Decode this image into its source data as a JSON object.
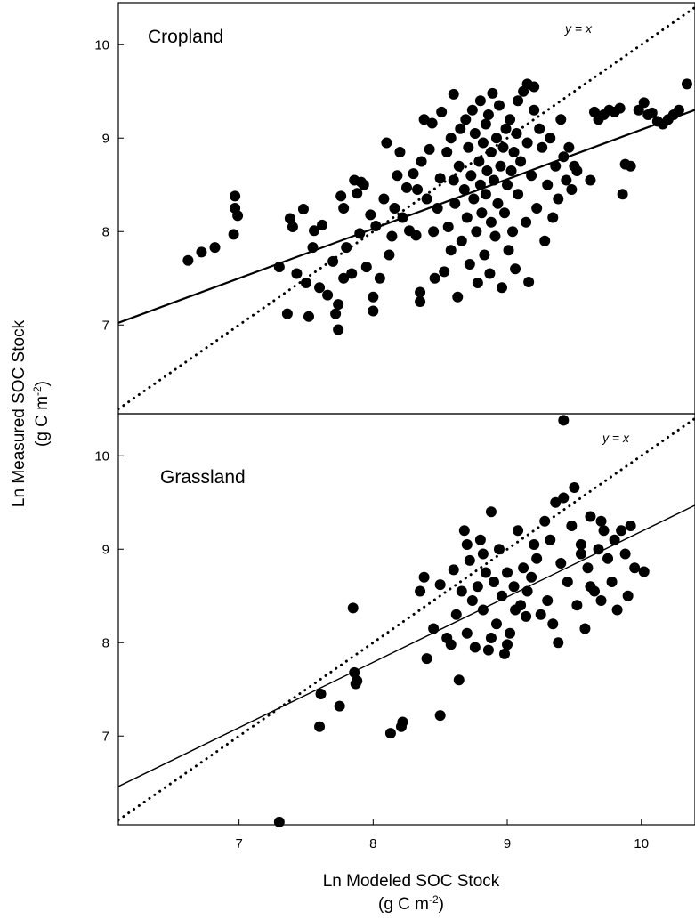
{
  "chart_data": {
    "type": "scatter",
    "xlabel": "Ln Modeled SOC Stock",
    "xlabel_units": "(g C m",
    "ylabel": "Ln Measured SOC Stock",
    "ylabel_units": "(g C m",
    "units_superscript": "-2",
    "units_close": ")",
    "xlim": [
      6.1,
      10.4
    ],
    "x_ticks": [
      7,
      8,
      9,
      10
    ],
    "panels": [
      {
        "name": "Cropland",
        "label": "Cropland",
        "ylim": [
          6.05,
          10.45
        ],
        "y_ticks": [
          7,
          8,
          9,
          10
        ],
        "identity_label": "y = x",
        "fit_line": {
          "slope": 0.53,
          "intercept": 3.79
        },
        "points": [
          [
            6.62,
            7.69
          ],
          [
            6.72,
            7.78
          ],
          [
            6.82,
            7.83
          ],
          [
            6.96,
            7.97
          ],
          [
            6.97,
            8.38
          ],
          [
            6.97,
            8.25
          ],
          [
            6.99,
            8.17
          ],
          [
            7.3,
            7.62
          ],
          [
            7.36,
            7.12
          ],
          [
            7.38,
            8.14
          ],
          [
            7.4,
            8.05
          ],
          [
            7.43,
            7.55
          ],
          [
            7.48,
            8.24
          ],
          [
            7.5,
            7.45
          ],
          [
            7.52,
            7.09
          ],
          [
            7.55,
            7.83
          ],
          [
            7.56,
            8.01
          ],
          [
            7.6,
            7.4
          ],
          [
            7.62,
            8.07
          ],
          [
            7.66,
            7.32
          ],
          [
            7.7,
            7.68
          ],
          [
            7.72,
            7.12
          ],
          [
            7.74,
            6.95
          ],
          [
            7.74,
            7.22
          ],
          [
            7.76,
            8.38
          ],
          [
            7.78,
            8.25
          ],
          [
            7.78,
            7.5
          ],
          [
            7.8,
            7.83
          ],
          [
            7.84,
            7.55
          ],
          [
            7.86,
            8.55
          ],
          [
            7.88,
            8.41
          ],
          [
            7.9,
            7.98
          ],
          [
            7.91,
            8.53
          ],
          [
            7.93,
            8.5
          ],
          [
            7.95,
            7.62
          ],
          [
            7.98,
            8.18
          ],
          [
            8.0,
            7.3
          ],
          [
            8.0,
            7.15
          ],
          [
            8.02,
            8.06
          ],
          [
            8.05,
            7.5
          ],
          [
            8.08,
            8.35
          ],
          [
            8.1,
            8.95
          ],
          [
            8.12,
            7.75
          ],
          [
            8.14,
            7.95
          ],
          [
            8.16,
            8.25
          ],
          [
            8.18,
            8.6
          ],
          [
            8.2,
            8.85
          ],
          [
            8.22,
            8.15
          ],
          [
            8.25,
            8.47
          ],
          [
            8.27,
            8.01
          ],
          [
            8.3,
            8.62
          ],
          [
            8.32,
            7.96
          ],
          [
            8.33,
            8.45
          ],
          [
            8.35,
            7.25
          ],
          [
            8.35,
            7.35
          ],
          [
            8.36,
            8.75
          ],
          [
            8.38,
            9.2
          ],
          [
            8.4,
            8.35
          ],
          [
            8.42,
            8.88
          ],
          [
            8.44,
            9.16
          ],
          [
            8.45,
            8.0
          ],
          [
            8.46,
            7.5
          ],
          [
            8.48,
            8.25
          ],
          [
            8.5,
            8.57
          ],
          [
            8.51,
            9.28
          ],
          [
            8.53,
            7.57
          ],
          [
            8.55,
            8.85
          ],
          [
            8.56,
            8.05
          ],
          [
            8.58,
            9.0
          ],
          [
            8.58,
            7.8
          ],
          [
            8.6,
            8.55
          ],
          [
            8.6,
            9.47
          ],
          [
            8.61,
            8.3
          ],
          [
            8.63,
            7.3
          ],
          [
            8.64,
            8.7
          ],
          [
            8.65,
            9.1
          ],
          [
            8.66,
            7.9
          ],
          [
            8.68,
            8.45
          ],
          [
            8.69,
            9.2
          ],
          [
            8.7,
            8.15
          ],
          [
            8.71,
            8.9
          ],
          [
            8.72,
            7.65
          ],
          [
            8.73,
            8.6
          ],
          [
            8.74,
            9.3
          ],
          [
            8.75,
            8.35
          ],
          [
            8.76,
            9.05
          ],
          [
            8.77,
            8.0
          ],
          [
            8.78,
            7.45
          ],
          [
            8.79,
            8.75
          ],
          [
            8.8,
            9.4
          ],
          [
            8.8,
            8.5
          ],
          [
            8.81,
            8.2
          ],
          [
            8.82,
            8.95
          ],
          [
            8.83,
            7.75
          ],
          [
            8.84,
            9.15
          ],
          [
            8.84,
            8.4
          ],
          [
            8.85,
            8.65
          ],
          [
            8.86,
            9.25
          ],
          [
            8.87,
            7.55
          ],
          [
            8.88,
            8.85
          ],
          [
            8.88,
            8.1
          ],
          [
            8.89,
            9.48
          ],
          [
            8.9,
            8.55
          ],
          [
            8.91,
            7.95
          ],
          [
            8.92,
            9.0
          ],
          [
            8.93,
            8.3
          ],
          [
            8.94,
            9.35
          ],
          [
            8.95,
            8.7
          ],
          [
            8.96,
            7.4
          ],
          [
            8.97,
            8.9
          ],
          [
            8.98,
            8.2
          ],
          [
            8.99,
            9.1
          ],
          [
            9.0,
            8.5
          ],
          [
            9.01,
            7.8
          ],
          [
            9.02,
            9.2
          ],
          [
            9.03,
            8.65
          ],
          [
            9.04,
            8.0
          ],
          [
            9.05,
            8.85
          ],
          [
            9.06,
            7.6
          ],
          [
            9.07,
            9.05
          ],
          [
            9.08,
            8.4
          ],
          [
            9.1,
            8.75
          ],
          [
            9.12,
            9.5
          ],
          [
            9.14,
            8.1
          ],
          [
            9.15,
            8.95
          ],
          [
            9.16,
            7.46
          ],
          [
            9.18,
            8.6
          ],
          [
            9.2,
            9.3
          ],
          [
            9.22,
            8.25
          ],
          [
            9.24,
            9.1
          ],
          [
            9.26,
            8.9
          ],
          [
            9.28,
            7.9
          ],
          [
            9.3,
            8.5
          ],
          [
            9.32,
            9.0
          ],
          [
            9.34,
            8.15
          ],
          [
            9.36,
            8.7
          ],
          [
            9.38,
            8.35
          ],
          [
            9.4,
            9.2
          ],
          [
            9.42,
            8.8
          ],
          [
            9.44,
            8.55
          ],
          [
            9.46,
            8.9
          ],
          [
            9.48,
            8.45
          ],
          [
            9.5,
            8.7
          ],
          [
            9.52,
            8.65
          ],
          [
            9.15,
            9.58
          ],
          [
            9.2,
            9.55
          ],
          [
            9.08,
            9.4
          ],
          [
            9.62,
            8.55
          ],
          [
            9.65,
            9.28
          ],
          [
            9.68,
            9.2
          ],
          [
            9.72,
            9.25
          ],
          [
            9.76,
            9.3
          ],
          [
            9.8,
            9.28
          ],
          [
            9.84,
            9.32
          ],
          [
            9.86,
            8.4
          ],
          [
            9.88,
            8.72
          ],
          [
            9.92,
            8.7
          ],
          [
            9.98,
            9.3
          ],
          [
            10.02,
            9.38
          ],
          [
            10.05,
            9.25
          ],
          [
            10.08,
            9.27
          ],
          [
            10.12,
            9.18
          ],
          [
            10.16,
            9.15
          ],
          [
            10.2,
            9.2
          ],
          [
            10.24,
            9.25
          ],
          [
            10.28,
            9.3
          ],
          [
            10.34,
            9.58
          ]
        ]
      },
      {
        "name": "Grassland",
        "label": "Grassland",
        "ylim": [
          6.05,
          10.45
        ],
        "y_ticks": [
          7,
          8,
          9,
          10
        ],
        "identity_label": "y = x",
        "fit_line": {
          "slope": 0.7,
          "intercept": 2.19
        },
        "points": [
          [
            7.3,
            6.08
          ],
          [
            7.6,
            7.1
          ],
          [
            7.61,
            7.45
          ],
          [
            7.75,
            7.32
          ],
          [
            7.85,
            8.37
          ],
          [
            7.86,
            7.68
          ],
          [
            7.87,
            7.56
          ],
          [
            7.88,
            7.59
          ],
          [
            8.13,
            7.03
          ],
          [
            8.21,
            7.1
          ],
          [
            8.22,
            7.15
          ],
          [
            8.35,
            8.55
          ],
          [
            8.38,
            8.7
          ],
          [
            8.4,
            7.83
          ],
          [
            8.45,
            8.15
          ],
          [
            8.5,
            8.62
          ],
          [
            8.5,
            7.22
          ],
          [
            8.55,
            8.05
          ],
          [
            8.58,
            7.98
          ],
          [
            8.6,
            8.78
          ],
          [
            8.62,
            8.3
          ],
          [
            8.64,
            7.6
          ],
          [
            8.66,
            8.55
          ],
          [
            8.68,
            9.2
          ],
          [
            8.7,
            8.1
          ],
          [
            8.72,
            8.88
          ],
          [
            8.74,
            8.45
          ],
          [
            8.76,
            7.95
          ],
          [
            8.78,
            8.6
          ],
          [
            8.8,
            9.1
          ],
          [
            8.82,
            8.35
          ],
          [
            8.84,
            8.75
          ],
          [
            8.86,
            7.92
          ],
          [
            8.88,
            9.4
          ],
          [
            8.9,
            8.65
          ],
          [
            8.92,
            8.2
          ],
          [
            8.94,
            9.0
          ],
          [
            8.96,
            8.5
          ],
          [
            8.98,
            7.88
          ],
          [
            9.0,
            8.75
          ],
          [
            9.02,
            8.1
          ],
          [
            9.05,
            8.6
          ],
          [
            9.08,
            9.2
          ],
          [
            9.1,
            8.4
          ],
          [
            9.12,
            8.8
          ],
          [
            9.15,
            8.55
          ],
          [
            9.18,
            8.7
          ],
          [
            9.2,
            9.05
          ],
          [
            9.22,
            8.9
          ],
          [
            9.25,
            8.3
          ],
          [
            9.28,
            9.3
          ],
          [
            9.3,
            8.45
          ],
          [
            9.32,
            9.1
          ],
          [
            9.34,
            8.2
          ],
          [
            9.36,
            9.5
          ],
          [
            9.38,
            8.0
          ],
          [
            9.4,
            8.85
          ],
          [
            9.42,
            10.38
          ],
          [
            9.42,
            9.55
          ],
          [
            9.45,
            8.65
          ],
          [
            9.48,
            9.25
          ],
          [
            9.5,
            9.66
          ],
          [
            9.52,
            8.4
          ],
          [
            9.55,
            9.05
          ],
          [
            9.58,
            8.15
          ],
          [
            9.6,
            8.8
          ],
          [
            9.62,
            9.35
          ],
          [
            9.65,
            8.55
          ],
          [
            9.68,
            9.0
          ],
          [
            9.7,
            8.45
          ],
          [
            9.72,
            9.2
          ],
          [
            9.75,
            8.9
          ],
          [
            9.78,
            8.65
          ],
          [
            9.8,
            9.1
          ],
          [
            9.82,
            8.35
          ],
          [
            9.85,
            9.2
          ],
          [
            9.88,
            8.95
          ],
          [
            9.9,
            8.5
          ],
          [
            9.92,
            9.25
          ],
          [
            9.95,
            8.8
          ],
          [
            10.02,
            8.76
          ],
          [
            8.88,
            8.05
          ],
          [
            8.82,
            8.95
          ],
          [
            8.7,
            9.05
          ],
          [
            9.0,
            7.98
          ],
          [
            9.06,
            8.35
          ],
          [
            9.14,
            8.28
          ],
          [
            9.55,
            8.95
          ],
          [
            9.62,
            8.6
          ],
          [
            9.7,
            9.3
          ]
        ]
      }
    ]
  }
}
